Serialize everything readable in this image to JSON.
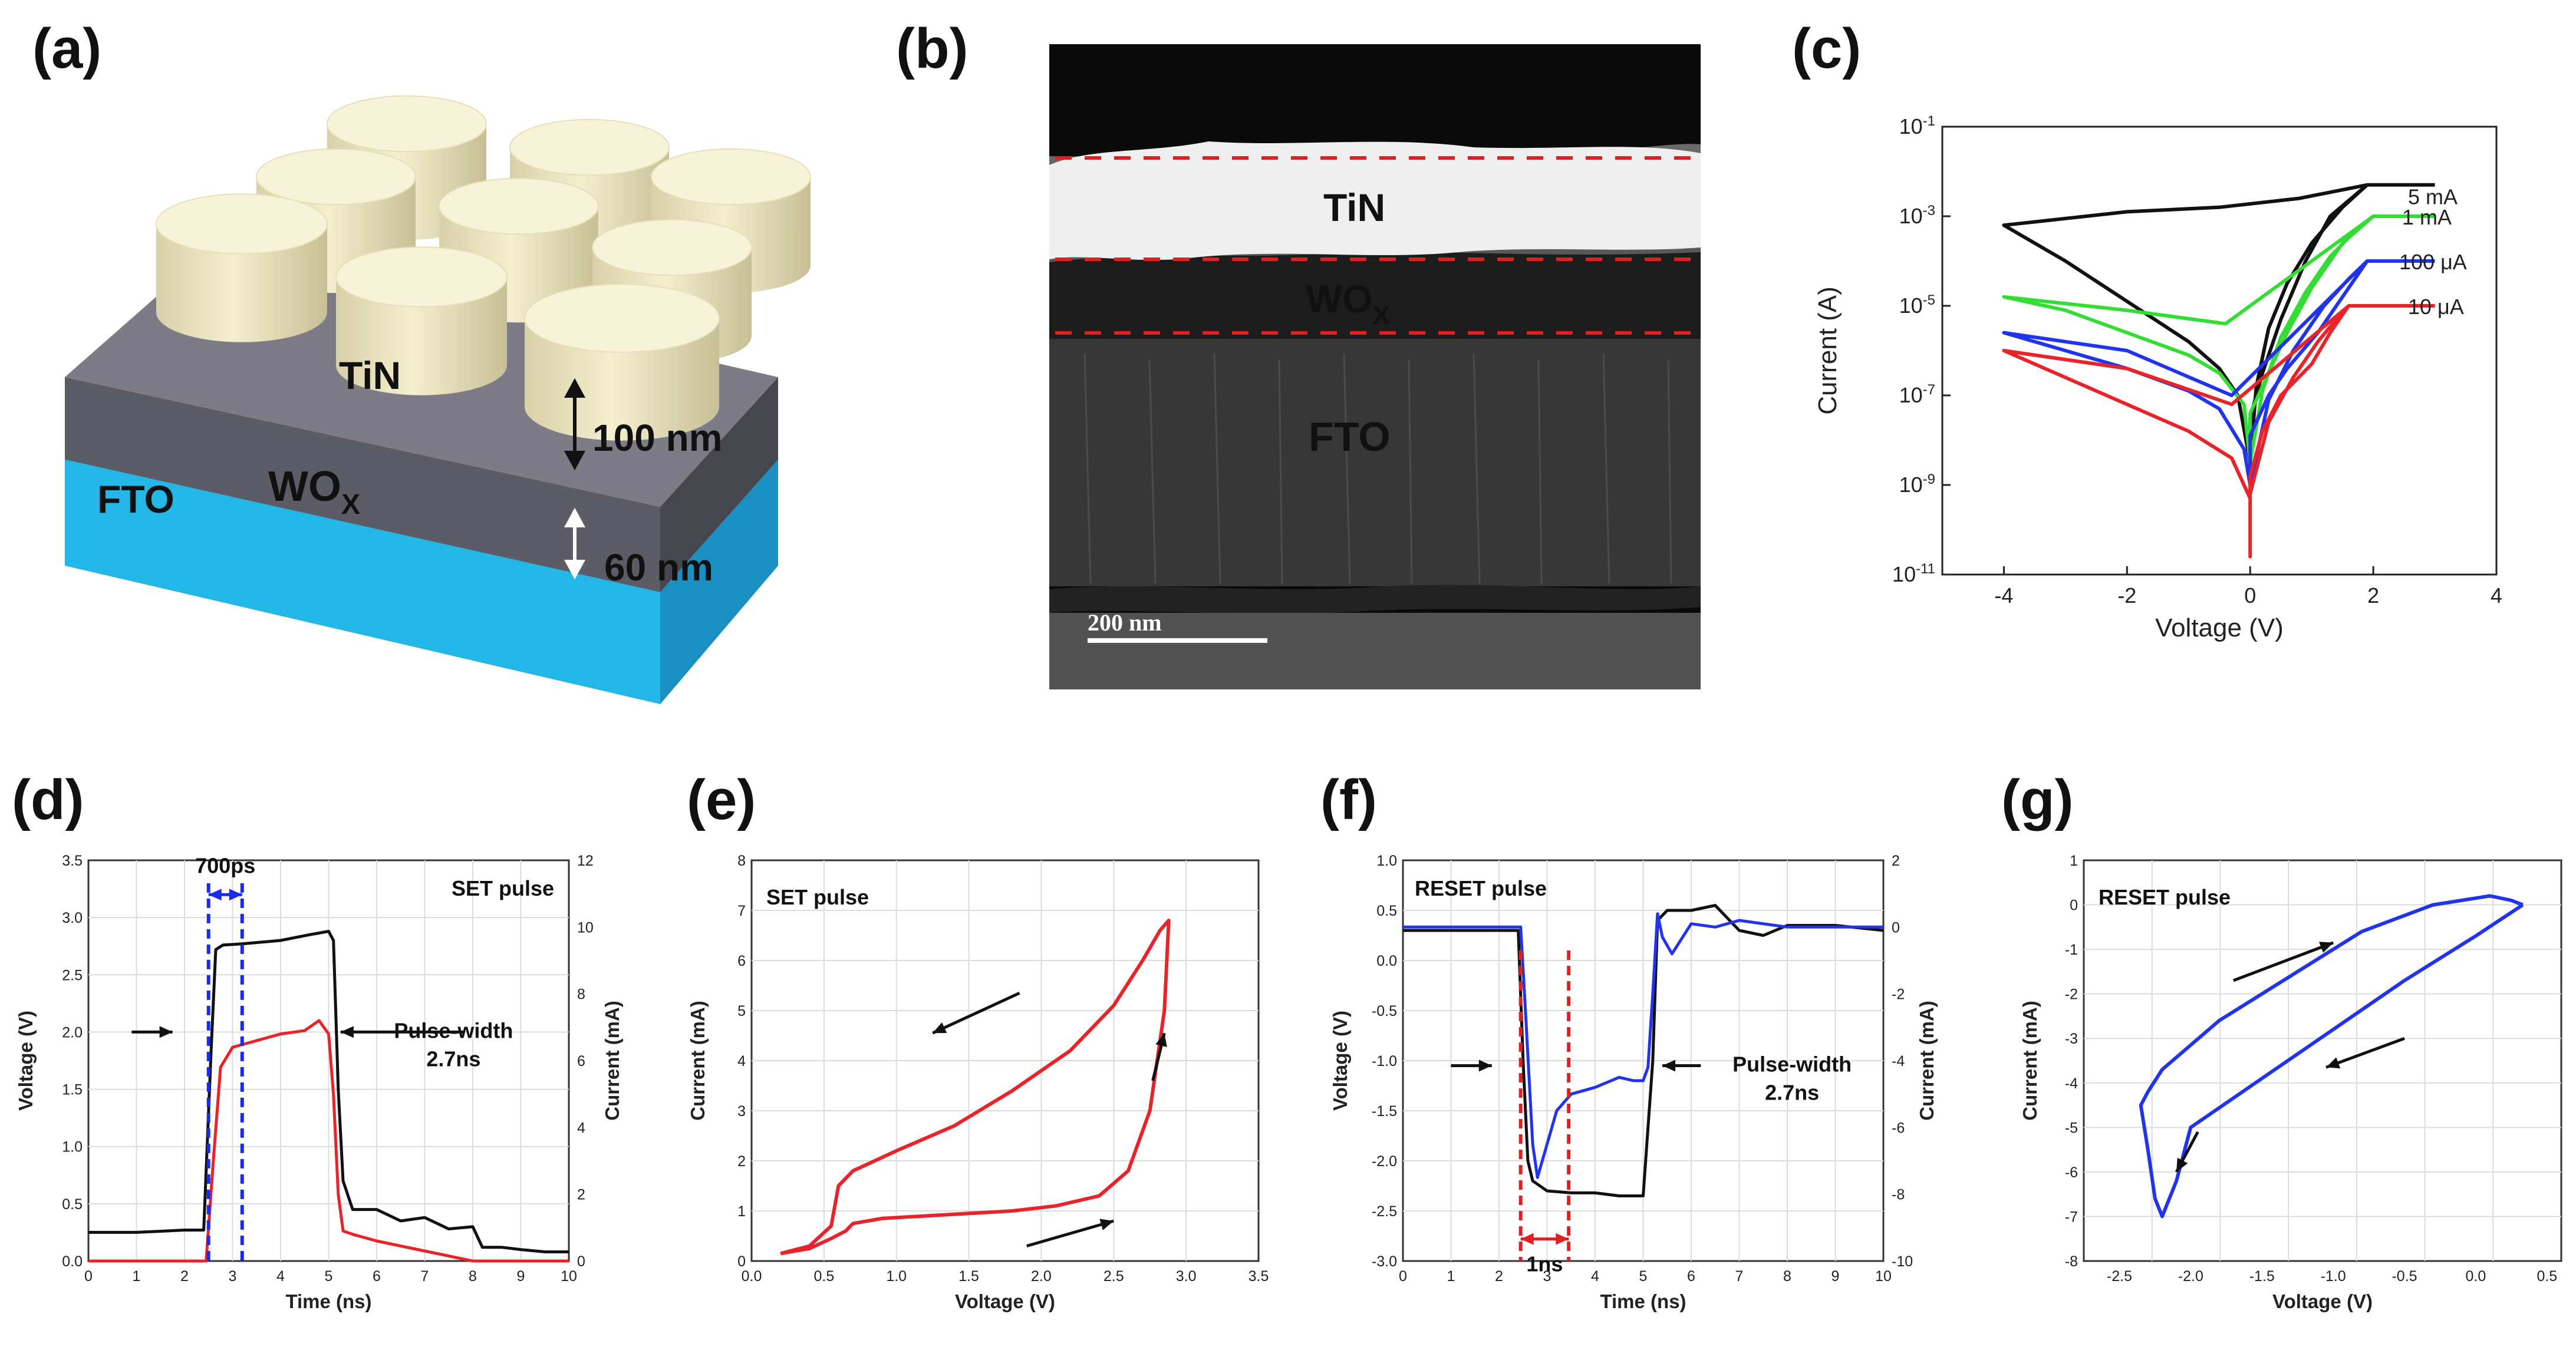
{
  "panels": {
    "a": {
      "label": "(a)",
      "electrode": "TiN",
      "oxide": "WO",
      "oxide_sub": "X",
      "substrate": "FTO",
      "thick_top": "100 nm",
      "thick_oxide": "60 nm"
    },
    "b": {
      "label": "(b)",
      "layer1": "TiN",
      "layer2": "WO",
      "layer2_sub": "X",
      "layer3": "FTO",
      "scale_bar": "200 nm"
    },
    "c": {
      "label": "(c)"
    },
    "d": {
      "label": "(d)"
    },
    "e": {
      "label": "(e)"
    },
    "f": {
      "label": "(f)"
    },
    "g": {
      "label": "(g)"
    }
  },
  "colors": {
    "black": "#111111",
    "red": "#e8232a",
    "blue": "#2233ee",
    "green": "#33dd33"
  },
  "chart_data": [
    {
      "panel": "c",
      "type": "line",
      "xlabel": "Voltage (V)",
      "ylabel": "Current (A)",
      "xlim": [
        -5,
        4
      ],
      "ylim_log10": [
        -11,
        -1
      ],
      "x_ticks": [
        "-4",
        "-2",
        "0",
        "2",
        "4"
      ],
      "y_tick_base": "10",
      "y_tick_exponents": [
        "-1",
        "-3",
        "-5",
        "-7",
        "-9",
        "-11"
      ],
      "series": [
        {
          "name": "5 mA",
          "color": "#111111",
          "x": [
            3.0,
            1.9,
            1.3,
            0.9,
            0.5,
            0.2,
            0,
            0,
            0.1,
            0.3,
            0.6,
            1.0,
            1.5,
            1.9,
            1.9,
            0.8,
            -0.5,
            -2,
            -4,
            -3,
            -2,
            -1,
            -0.5,
            -0.2,
            0
          ],
          "log10y": [
            -2.3,
            -2.3,
            -3.0,
            -4.0,
            -5.3,
            -6.5,
            -7.5,
            -8.5,
            -6.8,
            -5.5,
            -4.5,
            -3.6,
            -2.8,
            -2.3,
            -2.3,
            -2.6,
            -2.8,
            -2.9,
            -3.2,
            -4.0,
            -4.9,
            -5.8,
            -6.4,
            -7.0,
            -8.5
          ]
        },
        {
          "name": "1 mA",
          "color": "#33dd33",
          "x": [
            3.0,
            2.0,
            1.5,
            1.0,
            0.6,
            0.3,
            0,
            0,
            0.2,
            0.5,
            0.9,
            1.3,
            1.8,
            2.0,
            -0.4,
            -2,
            -4,
            -3,
            -2,
            -1,
            -0.5,
            -0.1,
            0
          ],
          "log10y": [
            -3.0,
            -3.0,
            -3.6,
            -4.6,
            -5.6,
            -6.5,
            -7.4,
            -8.5,
            -6.9,
            -5.7,
            -4.7,
            -3.9,
            -3.2,
            -3.0,
            -5.4,
            -5.1,
            -4.8,
            -5.1,
            -5.6,
            -6.1,
            -6.5,
            -7.2,
            -8.5
          ]
        },
        {
          "name": "100 μA",
          "color": "#2233ee",
          "x": [
            3.0,
            1.9,
            1.5,
            1.1,
            0.6,
            0.3,
            0,
            0,
            0.3,
            0.7,
            1.2,
            1.6,
            1.9,
            -0.3,
            -2,
            -4,
            -3,
            -2,
            -1,
            -0.5,
            -0.1,
            0
          ],
          "log10y": [
            -4.0,
            -4.0,
            -4.8,
            -5.6,
            -6.4,
            -7.0,
            -7.9,
            -9.0,
            -7.1,
            -6.0,
            -5.0,
            -4.4,
            -4.0,
            -7.0,
            -6.0,
            -5.6,
            -6.0,
            -6.4,
            -6.9,
            -7.3,
            -8.2,
            -9.0
          ]
        },
        {
          "name": "10 μA",
          "color": "#e8232a",
          "x": [
            3.0,
            1.6,
            1.3,
            1.0,
            0.5,
            0.2,
            0,
            0,
            0,
            0.3,
            0.7,
            1.1,
            1.4,
            1.6,
            -0.3,
            -2,
            -4,
            -3,
            -2,
            -1,
            -0.3,
            0
          ],
          "log10y": [
            -5.0,
            -5.0,
            -5.6,
            -6.3,
            -7.0,
            -7.8,
            -8.8,
            -10.6,
            -9.2,
            -7.6,
            -6.6,
            -5.8,
            -5.3,
            -5.0,
            -7.2,
            -6.4,
            -6.0,
            -6.6,
            -7.2,
            -7.8,
            -8.4,
            -9.3
          ]
        }
      ],
      "annotations": [
        "5 mA",
        "1 mA",
        "100 μA",
        "10 μA"
      ]
    },
    {
      "panel": "d",
      "type": "line",
      "title": "SET pulse",
      "xlabel": "Time (ns)",
      "ylabel": "Voltage (V)",
      "y2label": "Current (mA)",
      "xlim": [
        0,
        10
      ],
      "ylim": [
        0,
        3.5
      ],
      "y2lim": [
        0,
        12
      ],
      "x_ticks": [
        "0",
        "1",
        "2",
        "3",
        "4",
        "5",
        "6",
        "7",
        "8",
        "9",
        "10"
      ],
      "y_ticks": [
        "0.0",
        "0.5",
        "1.0",
        "1.5",
        "2.0",
        "2.5",
        "3.0",
        "3.5"
      ],
      "y2_ticks": [
        "0",
        "2",
        "4",
        "6",
        "8",
        "10",
        "12"
      ],
      "annotations": {
        "width_marker": "700ps",
        "pulse_label_1": "Pulse-width",
        "pulse_label_2": "2.7ns"
      },
      "series": [
        {
          "name": "Voltage",
          "axis": "left",
          "color": "#111111",
          "x": [
            0,
            1,
            2,
            2.4,
            2.55,
            2.65,
            2.8,
            3.2,
            4.0,
            4.6,
            5.0,
            5.1,
            5.2,
            5.3,
            5.5,
            6.0,
            6.5,
            7.0,
            7.5,
            8.0,
            8.2,
            8.6,
            9.0,
            9.5,
            10
          ],
          "y": [
            0.25,
            0.25,
            0.27,
            0.27,
            1.8,
            2.72,
            2.76,
            2.77,
            2.8,
            2.85,
            2.88,
            2.8,
            1.5,
            0.7,
            0.45,
            0.45,
            0.35,
            0.38,
            0.28,
            0.3,
            0.12,
            0.12,
            0.1,
            0.08,
            0.08
          ]
        },
        {
          "name": "Current",
          "axis": "right",
          "color": "#e8232a",
          "x": [
            0,
            1,
            2,
            2.45,
            2.6,
            2.75,
            3.0,
            3.5,
            4.0,
            4.5,
            4.8,
            5.0,
            5.1,
            5.2,
            5.3,
            5.5,
            6.0,
            7,
            8,
            9,
            10
          ],
          "y": [
            0,
            0,
            0,
            0,
            3.0,
            5.8,
            6.4,
            6.6,
            6.8,
            6.9,
            7.2,
            6.8,
            5.0,
            2.0,
            0.9,
            0.8,
            0.6,
            0.3,
            0,
            0,
            0
          ]
        }
      ]
    },
    {
      "panel": "e",
      "type": "line",
      "title": "SET pulse",
      "xlabel": "Voltage (V)",
      "ylabel": "Current (mA)",
      "xlim": [
        0,
        3.5
      ],
      "ylim": [
        0,
        8
      ],
      "x_ticks": [
        "0.0",
        "0.5",
        "1.0",
        "1.5",
        "2.0",
        "2.5",
        "3.0",
        "3.5"
      ],
      "y_ticks": [
        "0",
        "1",
        "2",
        "3",
        "4",
        "5",
        "6",
        "7",
        "8"
      ],
      "series": [
        {
          "name": "Current",
          "color": "#e8232a",
          "x": [
            0.2,
            0.4,
            0.55,
            0.65,
            0.7,
            0.9,
            1.2,
            1.5,
            1.8,
            2.1,
            2.4,
            2.6,
            2.75,
            2.85,
            2.88,
            2.82,
            2.7,
            2.5,
            2.2,
            1.8,
            1.4,
            1.0,
            0.7,
            0.6,
            0.55,
            0.4,
            0.2
          ],
          "y": [
            0.15,
            0.25,
            0.45,
            0.6,
            0.75,
            0.85,
            0.9,
            0.95,
            1.0,
            1.1,
            1.3,
            1.8,
            3.0,
            5.0,
            6.8,
            6.6,
            6.0,
            5.1,
            4.2,
            3.4,
            2.7,
            2.2,
            1.8,
            1.5,
            0.7,
            0.3,
            0.15
          ]
        }
      ]
    },
    {
      "panel": "f",
      "type": "line",
      "title": "RESET pulse",
      "xlabel": "Time (ns)",
      "ylabel": "Voltage (V)",
      "y2label": "Current (mA)",
      "xlim": [
        0,
        10
      ],
      "ylim": [
        -3.0,
        1.0
      ],
      "y2lim": [
        -10,
        2
      ],
      "x_ticks": [
        "0",
        "1",
        "2",
        "3",
        "4",
        "5",
        "6",
        "7",
        "8",
        "9",
        "10"
      ],
      "y_ticks": [
        "1.0",
        "0.5",
        "0.0",
        "-0.5",
        "-1.0",
        "-1.5",
        "-2.0",
        "-2.5",
        "-3.0"
      ],
      "y2_ticks": [
        "2",
        "0",
        "-2",
        "-4",
        "-6",
        "-8",
        "-10"
      ],
      "annotations": {
        "width_marker": "1ns",
        "pulse_label_1": "Pulse-width",
        "pulse_label_2": "2.7ns"
      },
      "series": [
        {
          "name": "Voltage",
          "axis": "left",
          "color": "#111111",
          "x": [
            0,
            1,
            2,
            2.4,
            2.5,
            2.6,
            2.7,
            3.0,
            3.5,
            4.0,
            4.5,
            5.0,
            5.2,
            5.3,
            5.5,
            6.0,
            6.5,
            7.0,
            7.5,
            8.0,
            9.0,
            10
          ],
          "y": [
            0.3,
            0.3,
            0.3,
            0.3,
            -1.0,
            -2.0,
            -2.2,
            -2.3,
            -2.32,
            -2.32,
            -2.35,
            -2.35,
            -1.0,
            0.4,
            0.5,
            0.5,
            0.55,
            0.3,
            0.25,
            0.35,
            0.35,
            0.3
          ]
        },
        {
          "name": "Current",
          "axis": "right",
          "color": "#2233ee",
          "x": [
            0,
            1,
            2,
            2.45,
            2.55,
            2.7,
            2.8,
            3.0,
            3.2,
            3.5,
            4.0,
            4.5,
            4.8,
            5.0,
            5.1,
            5.2,
            5.3,
            5.4,
            5.6,
            6.0,
            6.5,
            7.0,
            8.0,
            9.0,
            10
          ],
          "y": [
            0,
            0,
            0,
            0,
            -2.5,
            -6.5,
            -7.5,
            -6.5,
            -5.5,
            -5.0,
            -4.8,
            -4.5,
            -4.6,
            -4.6,
            -4.2,
            -2.0,
            0.4,
            -0.3,
            -0.8,
            0.1,
            0,
            0.2,
            0,
            0,
            0
          ]
        }
      ]
    },
    {
      "panel": "g",
      "type": "line",
      "title": "RESET pulse",
      "xlabel": "Voltage (V)",
      "ylabel": "Current (mA)",
      "xlim": [
        -2.75,
        0.6
      ],
      "ylim": [
        -8,
        1
      ],
      "x_ticks": [
        "-2.5",
        "-2.0",
        "-1.5",
        "-1.0",
        "-0.5",
        "0.0",
        "0.5"
      ],
      "y_ticks": [
        "1",
        "0",
        "-1",
        "-2",
        "-3",
        "-4",
        "-5",
        "-6",
        "-7",
        "-8"
      ],
      "series": [
        {
          "name": "Current",
          "color": "#2233ee",
          "x": [
            0.33,
            0.25,
            0.1,
            -0.3,
            -0.8,
            -1.3,
            -1.8,
            -2.2,
            -2.3,
            -2.35,
            -2.3,
            -2.25,
            -2.2,
            -2.1,
            -2.0,
            -1.5,
            -1.0,
            -0.5,
            0.0,
            0.33
          ],
          "y": [
            0,
            0.1,
            0.2,
            0.0,
            -0.6,
            -1.6,
            -2.6,
            -3.7,
            -4.2,
            -4.5,
            -5.5,
            -6.6,
            -7.0,
            -6.2,
            -5.0,
            -3.9,
            -2.8,
            -1.7,
            -0.7,
            0
          ]
        }
      ]
    }
  ]
}
